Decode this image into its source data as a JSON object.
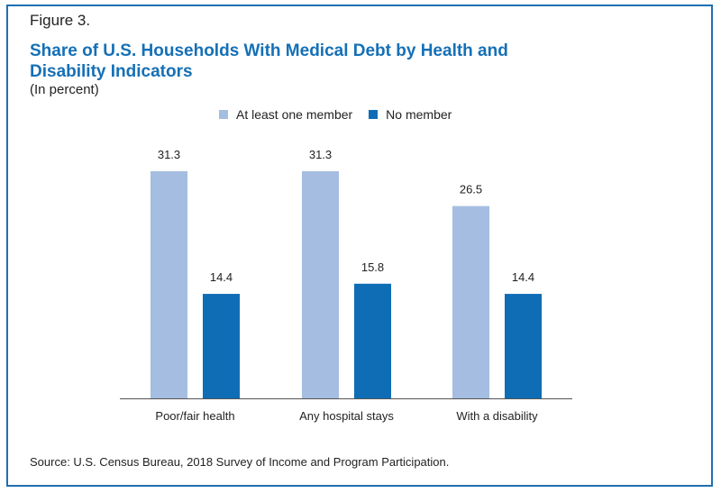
{
  "figure_label": "Figure 3.",
  "title": "Share of U.S. Households With Medical Debt by Health and Disability Indicators",
  "subtitle": "(In percent)",
  "source": "Source: U.S. Census Bureau, 2018 Survey of Income and Program Participation.",
  "colors": {
    "series_1": "#a5bde0",
    "series_2": "#0e6db5",
    "border": "#1f6fb2",
    "title": "#1570b6"
  },
  "chart_data": {
    "type": "bar",
    "title": "Share of U.S. Households With Medical Debt by Health and Disability Indicators",
    "ylabel": "(In percent)",
    "xlabel": "",
    "categories": [
      "Poor/fair health",
      "Any hospital stays",
      "With a disability"
    ],
    "series": [
      {
        "name": "At least one member",
        "values": [
          31.3,
          31.3,
          26.5
        ],
        "labels": [
          "31.3",
          "31.3",
          "26.5"
        ]
      },
      {
        "name": "No member",
        "values": [
          14.4,
          15.8,
          14.4
        ],
        "labels": [
          "14.4",
          "15.8",
          "14.4"
        ]
      }
    ],
    "ylim": [
      0,
      40
    ],
    "grid": false,
    "legend": "top-center"
  }
}
